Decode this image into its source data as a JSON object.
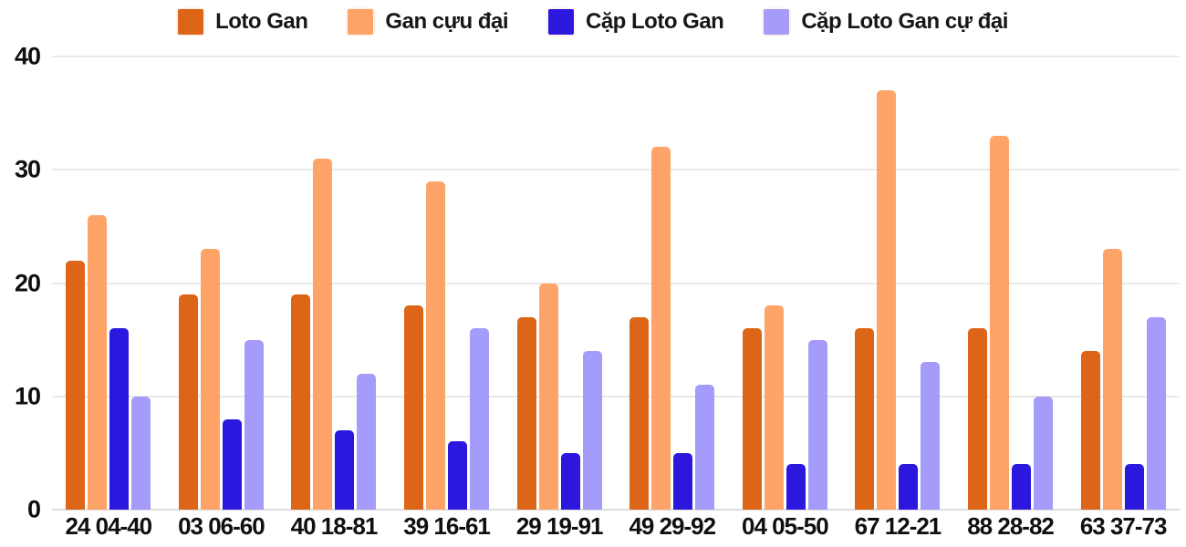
{
  "chart_data": {
    "type": "bar",
    "title": "",
    "xlabel": "",
    "ylabel": "",
    "ylim": [
      0,
      40
    ],
    "yticks": [
      0,
      10,
      20,
      30,
      40
    ],
    "grid": true,
    "legend_position": "top",
    "categories": [
      "24 04-40",
      "03 06-60",
      "40 18-81",
      "39 16-61",
      "29 19-91",
      "49 29-92",
      "04 05-50",
      "67 12-21",
      "88 28-82",
      "63 37-73"
    ],
    "series": [
      {
        "name": "Loto Gan",
        "color": "#DD6517",
        "values": [
          22,
          19,
          19,
          18,
          17,
          17,
          16,
          16,
          16,
          14
        ]
      },
      {
        "name": "Gan cựu đại",
        "color": "#FFA469",
        "values": [
          26,
          23,
          31,
          29,
          20,
          32,
          18,
          37,
          33,
          23
        ]
      },
      {
        "name": "Cặp Loto Gan",
        "color": "#2B17DE",
        "values": [
          16,
          8,
          7,
          6,
          5,
          5,
          4,
          4,
          4,
          4
        ]
      },
      {
        "name": "Cặp Loto Gan cự đại",
        "color": "#A49BFA",
        "values": [
          10,
          15,
          12,
          16,
          14,
          11,
          15,
          13,
          10,
          17
        ]
      }
    ],
    "colors": {
      "text": "#101010",
      "gridline": "#e9e9e9",
      "background": "#ffffff"
    }
  }
}
